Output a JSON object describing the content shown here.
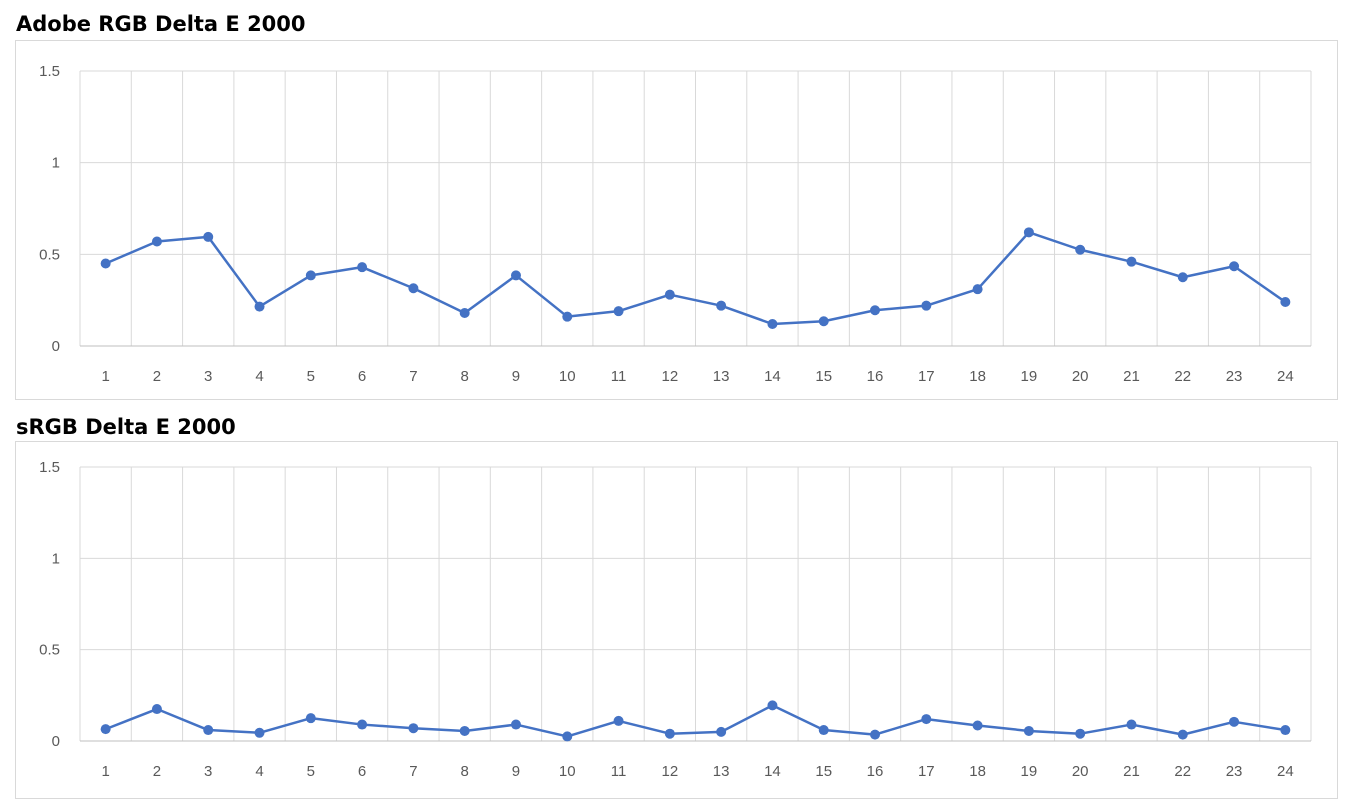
{
  "chart_data": [
    {
      "type": "line",
      "title": "Adobe RGB Delta E 2000",
      "xlabel": "",
      "ylabel": "",
      "categories": [
        "1",
        "2",
        "3",
        "4",
        "5",
        "6",
        "7",
        "8",
        "9",
        "10",
        "11",
        "12",
        "13",
        "14",
        "15",
        "16",
        "17",
        "18",
        "19",
        "20",
        "21",
        "22",
        "23",
        "24"
      ],
      "series": [
        {
          "values": [
            0.45,
            0.57,
            0.595,
            0.215,
            0.385,
            0.43,
            0.315,
            0.18,
            0.385,
            0.16,
            0.19,
            0.28,
            0.22,
            0.12,
            0.135,
            0.195,
            0.22,
            0.31,
            0.62,
            0.525,
            0.46,
            0.375,
            0.435,
            0.24
          ],
          "color": "#4472c4"
        }
      ],
      "ylim": [
        0,
        1.5
      ],
      "yticks": [
        "0",
        "0.5",
        "1",
        "1.5"
      ],
      "grid": true,
      "legend": "none"
    },
    {
      "type": "line",
      "title": "sRGB Delta E 2000",
      "xlabel": "",
      "ylabel": "",
      "categories": [
        "1",
        "2",
        "3",
        "4",
        "5",
        "6",
        "7",
        "8",
        "9",
        "10",
        "11",
        "12",
        "13",
        "14",
        "15",
        "16",
        "17",
        "18",
        "19",
        "20",
        "21",
        "22",
        "23",
        "24"
      ],
      "series": [
        {
          "values": [
            0.065,
            0.175,
            0.06,
            0.045,
            0.125,
            0.09,
            0.07,
            0.055,
            0.09,
            0.025,
            0.11,
            0.04,
            0.05,
            0.195,
            0.06,
            0.035,
            0.12,
            0.085,
            0.055,
            0.04,
            0.09,
            0.035,
            0.105,
            0.06
          ],
          "color": "#4472c4"
        }
      ],
      "ylim": [
        0,
        1.5
      ],
      "yticks": [
        "0",
        "0.5",
        "1",
        "1.5"
      ],
      "grid": true,
      "legend": "none"
    }
  ]
}
